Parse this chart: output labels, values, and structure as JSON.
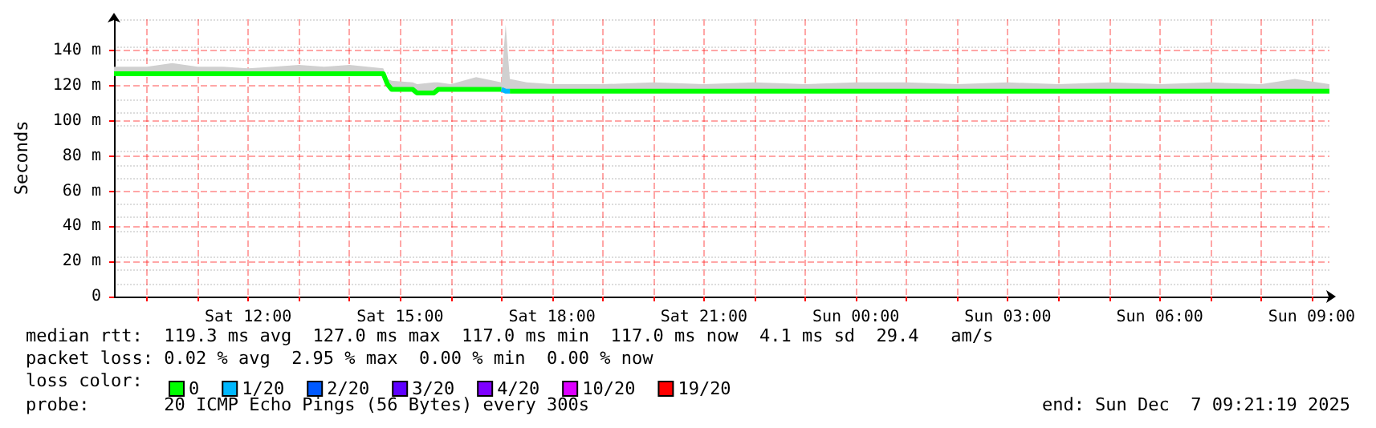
{
  "chart_data": {
    "type": "line",
    "ylabel": "Seconds",
    "x": [
      "2025-12-06T09:21",
      "2025-12-06T10:00",
      "2025-12-06T10:30",
      "2025-12-06T11:00",
      "2025-12-06T11:30",
      "2025-12-06T12:00",
      "2025-12-06T12:30",
      "2025-12-06T13:00",
      "2025-12-06T13:30",
      "2025-12-06T14:00",
      "2025-12-06T14:40",
      "2025-12-06T14:45",
      "2025-12-06T14:50",
      "2025-12-06T15:15",
      "2025-12-06T15:20",
      "2025-12-06T15:40",
      "2025-12-06T15:45",
      "2025-12-06T16:00",
      "2025-12-06T16:30",
      "2025-12-06T17:00",
      "2025-12-06T17:05",
      "2025-12-06T17:10",
      "2025-12-06T17:30",
      "2025-12-06T18:00",
      "2025-12-06T19:00",
      "2025-12-06T20:00",
      "2025-12-06T21:00",
      "2025-12-06T22:00",
      "2025-12-06T23:00",
      "2025-12-07T00:00",
      "2025-12-07T01:00",
      "2025-12-07T02:00",
      "2025-12-07T03:00",
      "2025-12-07T04:00",
      "2025-12-07T05:00",
      "2025-12-07T06:00",
      "2025-12-07T07:00",
      "2025-12-07T08:00",
      "2025-12-07T08:40",
      "2025-12-07T09:21"
    ],
    "series": [
      {
        "name": "0",
        "color": "#00ff00",
        "values": [
          127,
          127,
          127,
          127,
          127,
          127,
          127,
          127,
          127,
          127,
          127,
          121,
          118,
          118,
          116,
          116,
          118,
          118,
          118,
          118,
          null,
          117,
          117,
          117,
          117,
          117,
          117,
          117,
          117,
          117,
          117,
          117,
          117,
          117,
          117,
          117,
          117,
          117,
          117,
          117
        ],
        "lower": [
          127,
          127,
          127,
          127,
          127,
          127,
          127,
          127,
          127,
          127,
          127,
          121,
          118,
          118,
          116,
          116,
          118,
          118,
          118,
          118,
          117,
          117,
          117,
          117,
          117,
          117,
          117,
          117,
          117,
          117,
          117,
          117,
          117,
          117,
          117,
          117,
          117,
          117,
          117,
          117
        ],
        "upper": [
          131,
          131,
          133,
          131,
          131,
          130,
          131,
          132,
          131,
          132,
          130,
          124,
          123,
          122,
          121,
          122,
          122,
          121,
          125,
          122,
          155,
          124,
          122,
          121,
          121,
          122,
          121,
          122,
          121,
          122,
          122,
          121,
          122,
          121,
          122,
          121,
          122,
          121,
          124,
          121
        ]
      },
      {
        "name": "1/20",
        "color": "#00b8ff",
        "values": [
          null,
          null,
          null,
          null,
          null,
          null,
          null,
          null,
          null,
          null,
          null,
          null,
          null,
          null,
          null,
          null,
          null,
          null,
          null,
          118,
          117,
          117,
          null,
          null,
          null,
          null,
          null,
          null,
          null,
          null,
          null,
          null,
          null,
          null,
          null,
          null,
          null,
          null,
          null,
          null
        ]
      },
      {
        "name": "2/20",
        "color": "#0059ff",
        "values": [
          null,
          null,
          null,
          null,
          null,
          null,
          null,
          null,
          null,
          null,
          null,
          null,
          null,
          null,
          null,
          null,
          null,
          null,
          null,
          null,
          null,
          null,
          null,
          null,
          null,
          null,
          null,
          null,
          null,
          null,
          null,
          null,
          null,
          null,
          null,
          null,
          null,
          null,
          null,
          null
        ]
      },
      {
        "name": "3/20",
        "color": "#5e00ff",
        "values": [
          null,
          null,
          null,
          null,
          null,
          null,
          null,
          null,
          null,
          null,
          null,
          null,
          null,
          null,
          null,
          null,
          null,
          null,
          null,
          null,
          null,
          null,
          null,
          null,
          null,
          null,
          null,
          null,
          null,
          null,
          null,
          null,
          null,
          null,
          null,
          null,
          null,
          null,
          null,
          null
        ]
      },
      {
        "name": "4/20",
        "color": "#7e00ff",
        "values": [
          null,
          null,
          null,
          null,
          null,
          null,
          null,
          null,
          null,
          null,
          null,
          null,
          null,
          null,
          null,
          null,
          null,
          null,
          null,
          null,
          null,
          null,
          null,
          null,
          null,
          null,
          null,
          null,
          null,
          null,
          null,
          null,
          null,
          null,
          null,
          null,
          null,
          null,
          null,
          null
        ]
      },
      {
        "name": "10/20",
        "color": "#dd00ff",
        "values": [
          null,
          null,
          null,
          null,
          null,
          null,
          null,
          null,
          null,
          null,
          null,
          null,
          null,
          null,
          null,
          null,
          null,
          null,
          null,
          null,
          null,
          null,
          null,
          null,
          null,
          null,
          null,
          null,
          null,
          null,
          null,
          null,
          null,
          null,
          null,
          null,
          null,
          null,
          null,
          null
        ]
      },
      {
        "name": "19/20",
        "color": "#ff0000",
        "values": [
          null,
          null,
          null,
          null,
          null,
          null,
          null,
          null,
          null,
          null,
          null,
          null,
          null,
          null,
          null,
          null,
          null,
          null,
          null,
          null,
          null,
          null,
          null,
          null,
          null,
          null,
          null,
          null,
          null,
          null,
          null,
          null,
          null,
          null,
          null,
          null,
          null,
          null,
          null,
          null
        ]
      }
    ],
    "xlim": [
      "2025-12-06T09:21",
      "2025-12-07T09:21"
    ],
    "xticks": [
      {
        "value": "2025-12-06T10:00",
        "label": null
      },
      {
        "value": "2025-12-06T11:00",
        "label": null
      },
      {
        "value": "2025-12-06T12:00",
        "label": "Sat 12:00"
      },
      {
        "value": "2025-12-06T13:00",
        "label": null
      },
      {
        "value": "2025-12-06T14:00",
        "label": null
      },
      {
        "value": "2025-12-06T15:00",
        "label": "Sat 15:00"
      },
      {
        "value": "2025-12-06T16:00",
        "label": null
      },
      {
        "value": "2025-12-06T17:00",
        "label": null
      },
      {
        "value": "2025-12-06T18:00",
        "label": "Sat 18:00"
      },
      {
        "value": "2025-12-06T19:00",
        "label": null
      },
      {
        "value": "2025-12-06T20:00",
        "label": null
      },
      {
        "value": "2025-12-06T21:00",
        "label": "Sat 21:00"
      },
      {
        "value": "2025-12-06T22:00",
        "label": null
      },
      {
        "value": "2025-12-06T23:00",
        "label": null
      },
      {
        "value": "2025-12-07T00:00",
        "label": "Sun 00:00"
      },
      {
        "value": "2025-12-07T01:00",
        "label": null
      },
      {
        "value": "2025-12-07T02:00",
        "label": null
      },
      {
        "value": "2025-12-07T03:00",
        "label": "Sun 03:00"
      },
      {
        "value": "2025-12-07T04:00",
        "label": null
      },
      {
        "value": "2025-12-07T05:00",
        "label": null
      },
      {
        "value": "2025-12-07T06:00",
        "label": "Sun 06:00"
      },
      {
        "value": "2025-12-07T07:00",
        "label": null
      },
      {
        "value": "2025-12-07T08:00",
        "label": null
      },
      {
        "value": "2025-12-07T09:00",
        "label": "Sun 09:00"
      }
    ],
    "ylim": [
      0,
      158
    ],
    "yticks": [
      0,
      {
        "value": 20,
        "label": "20 m"
      },
      {
        "value": 40,
        "label": "40 m"
      },
      {
        "value": 60,
        "label": "60 m"
      },
      {
        "value": 80,
        "label": "80 m"
      },
      {
        "value": 100,
        "label": "100 m"
      },
      {
        "value": 120,
        "label": "120 m"
      },
      {
        "value": 140,
        "label": "140 m"
      }
    ],
    "grid": true,
    "legend": "bottom left",
    "marker": "none",
    "line_style": "solid",
    "annotations": [
      "median rtt:  119.3 ms avg  127.0 ms max  117.0 ms min  117.0 ms now  4.1 ms sd  29.4   am/s",
      "packet loss: 0.02 % avg  2.95 % max  0.00 % min  0.00 % now",
      "loss color:",
      "probe:       20 ICMP Echo Pings (56 Bytes) every 300s",
      "end: Sun Dec  7 09:21:19 2025"
    ]
  }
}
